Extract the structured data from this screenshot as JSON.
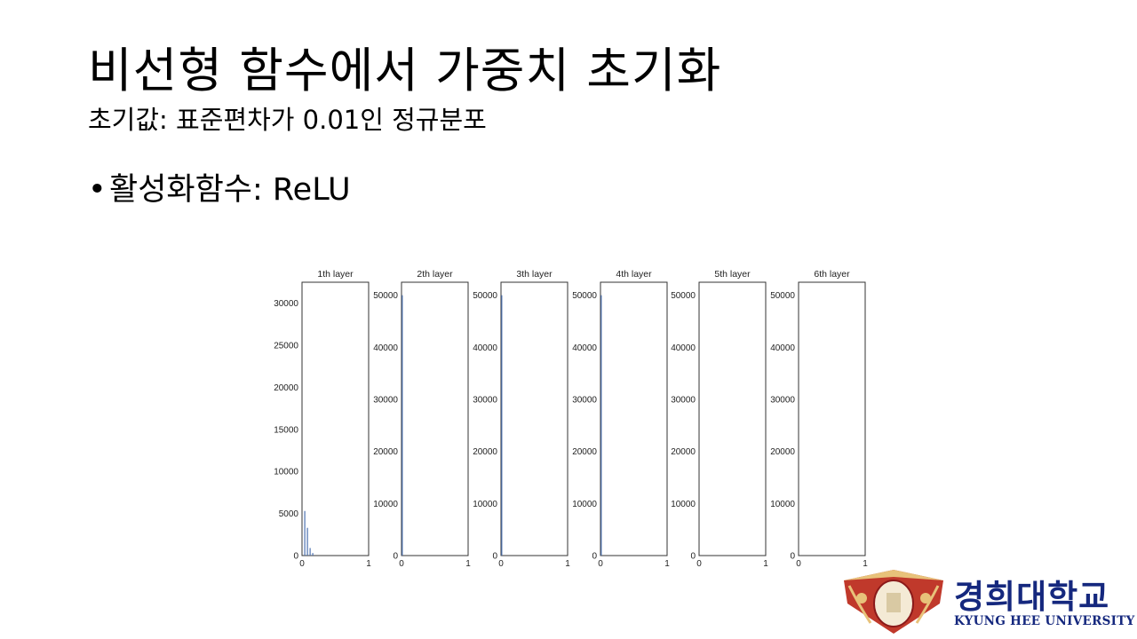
{
  "slide": {
    "title": "비선형 함수에서 가중치 초기화",
    "subtitle": "초기값: 표준편차가 0.01인 정규분포",
    "bullet_char": "•",
    "bullet_text": "활성화함수: ReLU"
  },
  "chart_data": {
    "type": "bar",
    "subplots": [
      {
        "title": "1th layer",
        "xlim": [
          0,
          1
        ],
        "xticks": [
          0,
          1
        ],
        "ylim": [
          0,
          32500
        ],
        "yticks": [
          0,
          5000,
          10000,
          15000,
          20000,
          25000,
          30000
        ],
        "bins": [
          {
            "x": 0.04,
            "y": 5300
          },
          {
            "x": 0.08,
            "y": 3300
          },
          {
            "x": 0.12,
            "y": 900
          },
          {
            "x": 0.16,
            "y": 300
          }
        ]
      },
      {
        "title": "2th layer",
        "xlim": [
          0,
          1
        ],
        "xticks": [
          0,
          1
        ],
        "ylim": [
          0,
          52500
        ],
        "yticks": [
          0,
          10000,
          20000,
          30000,
          40000,
          50000
        ],
        "bins": [
          {
            "x": 0.01,
            "y": 50000
          }
        ]
      },
      {
        "title": "3th layer",
        "xlim": [
          0,
          1
        ],
        "xticks": [
          0,
          1
        ],
        "ylim": [
          0,
          52500
        ],
        "yticks": [
          0,
          10000,
          20000,
          30000,
          40000,
          50000
        ],
        "bins": [
          {
            "x": 0.01,
            "y": 50000
          }
        ]
      },
      {
        "title": "4th layer",
        "xlim": [
          0,
          1
        ],
        "xticks": [
          0,
          1
        ],
        "ylim": [
          0,
          52500
        ],
        "yticks": [
          0,
          10000,
          20000,
          30000,
          40000,
          50000
        ],
        "bins": [
          {
            "x": 0.01,
            "y": 50000
          }
        ]
      },
      {
        "title": "5th layer",
        "xlim": [
          0,
          1
        ],
        "xticks": [
          0,
          1
        ],
        "ylim": [
          0,
          52500
        ],
        "yticks": [
          0,
          10000,
          20000,
          30000,
          40000,
          50000
        ],
        "bins": []
      },
      {
        "title": "6th layer",
        "xlim": [
          0,
          1
        ],
        "xticks": [
          0,
          1
        ],
        "ylim": [
          0,
          52500
        ],
        "yticks": [
          0,
          10000,
          20000,
          30000,
          40000,
          50000
        ],
        "bins": []
      }
    ],
    "bar_color": "#4c72b0",
    "grid": false
  },
  "logo": {
    "name_ko": "경희대학교",
    "name_en": "KYUNG HEE UNIVERSITY",
    "emblem_icon": "university-emblem-icon",
    "brand_color": "#15287e",
    "emblem_color": "#c0392b"
  }
}
